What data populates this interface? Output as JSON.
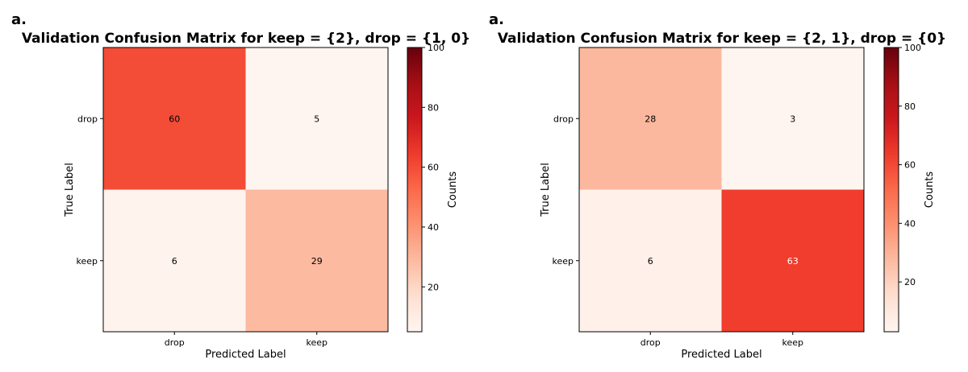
{
  "chart_data": [
    {
      "type": "heatmap",
      "panel_label": "a.",
      "title": "Validation Confusion Matrix for keep = {2}, drop = {1, 0}",
      "xlabel": "Predicted Label",
      "ylabel": "True Label",
      "x_categories": [
        "drop",
        "keep"
      ],
      "y_categories": [
        "drop",
        "keep"
      ],
      "values": [
        [
          60,
          5
        ],
        [
          6,
          29
        ]
      ],
      "colorbar": {
        "label": "Counts",
        "min": 5,
        "max": 100,
        "ticks": [
          20,
          40,
          60,
          80,
          100
        ]
      },
      "colormap": "Reds"
    },
    {
      "type": "heatmap",
      "panel_label": "a.",
      "title": "Validation Confusion Matrix for keep = {2, 1}, drop = {0}",
      "xlabel": "Predicted Label",
      "ylabel": "True Label",
      "x_categories": [
        "drop",
        "keep"
      ],
      "y_categories": [
        "drop",
        "keep"
      ],
      "values": [
        [
          28,
          3
        ],
        [
          6,
          63
        ]
      ],
      "colorbar": {
        "label": "Counts",
        "min": 3,
        "max": 100,
        "ticks": [
          20,
          40,
          60,
          80,
          100
        ]
      },
      "colormap": "Reds"
    }
  ]
}
